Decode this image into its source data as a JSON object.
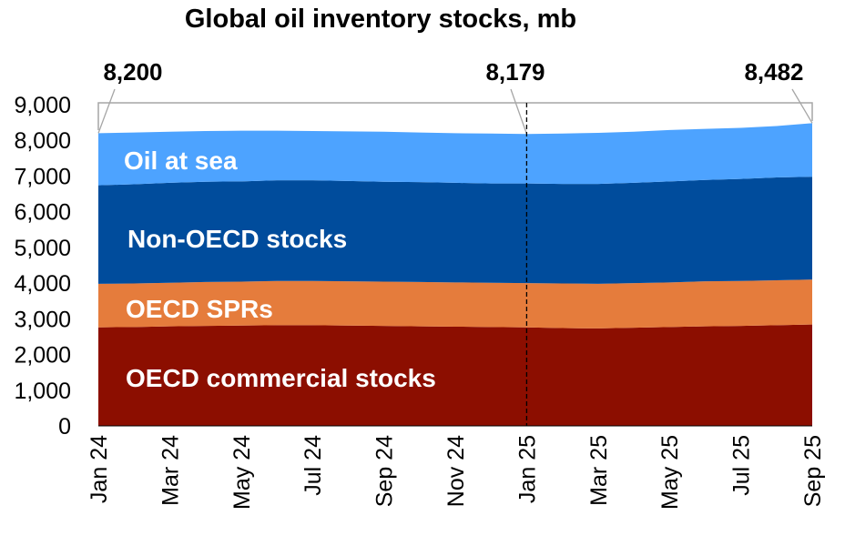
{
  "chart_data": {
    "type": "area",
    "stacked": true,
    "title": "Global oil inventory stocks, mb",
    "xlabel": "",
    "ylabel": "",
    "ylim": [
      0,
      9000
    ],
    "yticks": [
      0,
      1000,
      2000,
      3000,
      4000,
      5000,
      6000,
      7000,
      8000,
      9000
    ],
    "ytick_labels": [
      "0",
      "1,000",
      "2,000",
      "3,000",
      "4,000",
      "5,000",
      "6,000",
      "7,000",
      "8,000",
      "9,000"
    ],
    "x": [
      "Jan 24",
      "Feb 24",
      "Mar 24",
      "Apr 24",
      "May 24",
      "Jun 24",
      "Jul 24",
      "Aug 24",
      "Sep 24",
      "Oct 24",
      "Nov 24",
      "Dec 24",
      "Jan 25",
      "Feb 25",
      "Mar 25",
      "Apr 25",
      "May 25",
      "Jun 25",
      "Jul 25",
      "Aug 25",
      "Sep 25"
    ],
    "xtick_labels": [
      "Jan 24",
      "Mar 24",
      "May 24",
      "Jul 24",
      "Sep 24",
      "Nov 24",
      "Jan 25",
      "Mar 25",
      "May 25",
      "Jul 25",
      "Sep 25"
    ],
    "grid": false,
    "legend": "inline labels",
    "series": [
      {
        "name": "OECD commercial stocks",
        "color": "#8c0e00",
        "values": [
          2760,
          2770,
          2790,
          2800,
          2810,
          2820,
          2820,
          2810,
          2800,
          2790,
          2780,
          2770,
          2760,
          2740,
          2730,
          2750,
          2770,
          2790,
          2800,
          2820,
          2840
        ]
      },
      {
        "name": "OECD SPRs",
        "color": "#e57c3c",
        "values": [
          1220,
          1220,
          1220,
          1230,
          1230,
          1240,
          1240,
          1240,
          1240,
          1240,
          1240,
          1240,
          1240,
          1250,
          1250,
          1250,
          1250,
          1260,
          1260,
          1260,
          1260
        ]
      },
      {
        "name": "Non-OECD stocks",
        "color": "#004c9c",
        "values": [
          2760,
          2780,
          2800,
          2810,
          2810,
          2820,
          2820,
          2810,
          2800,
          2800,
          2790,
          2780,
          2790,
          2790,
          2800,
          2810,
          2830,
          2840,
          2860,
          2880,
          2880
        ]
      },
      {
        "name": "Oil at sea",
        "color": "#4da3ff",
        "values": [
          1460,
          1450,
          1430,
          1420,
          1420,
          1390,
          1380,
          1390,
          1400,
          1390,
          1390,
          1400,
          1389,
          1410,
          1430,
          1430,
          1440,
          1430,
          1430,
          1440,
          1502
        ]
      }
    ],
    "annotations": [
      {
        "x": "Jan 24",
        "label": "8,200"
      },
      {
        "x": "Jan 25",
        "label": "8,179",
        "dashed_vertical_line": true
      },
      {
        "x": "Sep 25",
        "label": "8,482"
      }
    ]
  }
}
